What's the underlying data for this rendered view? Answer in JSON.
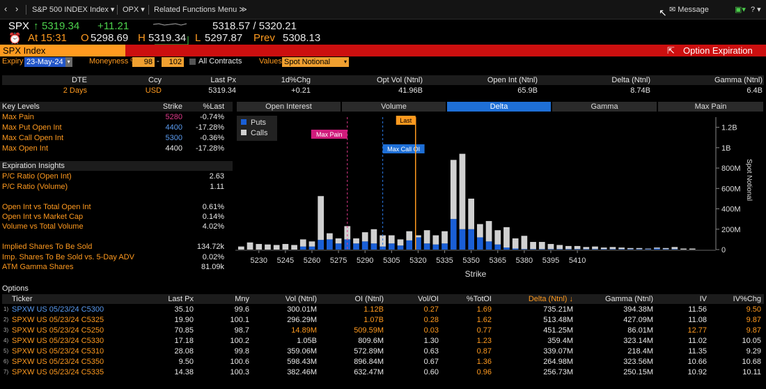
{
  "titlebar": {
    "security": "S&P 500 INDEX Index",
    "func": "OPX",
    "related": "Related Functions Menu",
    "message": "Message",
    "help": "?"
  },
  "quote": {
    "ticker": "SPX",
    "last": "5319.34",
    "change": "+11.21",
    "bidask": "5318.57 / 5320.21",
    "at": "At 15:31",
    "open_lbl": "O",
    "open": "5298.69",
    "high_lbl": "H",
    "high": "5319.34",
    "low_lbl": "L",
    "low": "5297.87",
    "prev_lbl": "Prev",
    "prev": "5308.13"
  },
  "header": {
    "index_label": "SPX Index",
    "title": "Option Expiration"
  },
  "controls": {
    "expiry_lbl": "Expiry",
    "expiry": "23-May-24",
    "moneyness_lbl": "Moneyness %",
    "m_low": "98",
    "m_high": "102",
    "all_contracts": "All Contracts",
    "values_lbl": "Values",
    "values": "Spot Notional"
  },
  "summary": {
    "headers": [
      "DTE",
      "Ccy",
      "Last Px",
      "1d%Chg",
      "Opt Vol (Ntnl)",
      "Open Int (Ntnl)",
      "Delta (Ntnl)",
      "Gamma (Ntnl)"
    ],
    "values": [
      "2 Days",
      "USD",
      "5319.34",
      "+0.21",
      "41.96B",
      "65.9B",
      "8.74B",
      "6.4B"
    ]
  },
  "key_levels": {
    "header": "Key Levels",
    "col_strike": "Strike",
    "col_last": "%Last",
    "rows": [
      {
        "label": "Max Pain",
        "strike": "5280",
        "last": "-0.74%",
        "color": "#e0388a"
      },
      {
        "label": "Max Put Open Int",
        "strike": "4400",
        "last": "-17.28%",
        "color": "#5a9bf0"
      },
      {
        "label": "Max Call Open Int",
        "strike": "5300",
        "last": "-0.36%",
        "color": "#5a9bf0"
      },
      {
        "label": "Max Open Int",
        "strike": "4400",
        "last": "-17.28%",
        "color": "#e8e8e8"
      }
    ]
  },
  "insights": {
    "header": "Expiration Insights",
    "rows": [
      {
        "label": "P/C Ratio (Open Int)",
        "value": "2.63"
      },
      {
        "label": "P/C Ratio (Volume)",
        "value": "1.11"
      },
      {
        "label": "Open Int vs Total Open Int",
        "value": "0.61%"
      },
      {
        "label": "Open Int vs Market Cap",
        "value": "0.14%"
      },
      {
        "label": "Volume vs Total Volume",
        "value": "4.02%"
      },
      {
        "label": "Implied Shares To Be Sold",
        "value": "134.72k"
      },
      {
        "label": "Imp. Shares To Be Sold vs. 5-Day ADV",
        "value": "0.02%"
      },
      {
        "label": "ATM Gamma Shares",
        "value": "81.09k"
      }
    ]
  },
  "chart_tabs": [
    "Open Interest",
    "Volume",
    "Delta",
    "Gamma",
    "Max Pain"
  ],
  "chart_data": {
    "type": "bar",
    "xlabel": "Strike",
    "ylabel": "Spot Notional",
    "x_ticks": [
      "5230",
      "5245",
      "5260",
      "5275",
      "5290",
      "5305",
      "5320",
      "5335",
      "5350",
      "5365",
      "5380",
      "5395",
      "5410"
    ],
    "y_ticks": [
      "0",
      "200M",
      "400M",
      "600M",
      "800M",
      "1B",
      "1.2B"
    ],
    "ylim": [
      0,
      1300
    ],
    "legend": [
      "Puts",
      "Calls"
    ],
    "annotations": {
      "max_pain": "Max Pain",
      "max_call_oi": "Max Call OI",
      "last": "Last"
    },
    "strike_start": 5220,
    "strike_step": 5,
    "series": [
      {
        "name": "Puts",
        "color": "#1a5fd6",
        "values": [
          0,
          0,
          0,
          0,
          0,
          0,
          0,
          30,
          30,
          95,
          100,
          60,
          100,
          60,
          80,
          60,
          30,
          60,
          40,
          90,
          120,
          60,
          50,
          60,
          300,
          200,
          200,
          120,
          80,
          50,
          20,
          10,
          5,
          5,
          5,
          5,
          5,
          5,
          5,
          5,
          5,
          5,
          5,
          5,
          5,
          5,
          5,
          10,
          5,
          5,
          0,
          0,
          0,
          0
        ]
      },
      {
        "name": "Calls",
        "color": "#d0d0d0",
        "values": [
          30,
          70,
          55,
          50,
          45,
          55,
          45,
          70,
          50,
          430,
          60,
          50,
          130,
          50,
          90,
          140,
          110,
          80,
          60,
          90,
          20,
          130,
          90,
          120,
          580,
          740,
          300,
          130,
          200,
          140,
          200,
          100,
          130,
          70,
          70,
          50,
          40,
          30,
          30,
          20,
          25,
          15,
          20,
          15,
          10,
          10,
          5,
          10,
          10,
          20,
          10,
          10,
          0,
          0
        ]
      }
    ]
  },
  "options": {
    "title": "Options",
    "headers": [
      "Ticker",
      "Last Px",
      "Mny",
      "Vol (Ntnl)",
      "OI (Ntnl)",
      "Vol/OI",
      "%TotOI",
      "Delta (Ntnl) ↓",
      "Gamma (Ntnl)",
      "IV",
      "IV%Chg"
    ],
    "rows": [
      {
        "n": "1)",
        "t": "SPXW US 05/23/24 C5300",
        "px": "35.10",
        "mny": "99.6",
        "vol": "300.01M",
        "oi": "1.12B",
        "voi": "0.27",
        "pct": "1.69",
        "delta": "735.21M",
        "gamma": "394.38M",
        "iv": "11.56",
        "ivc": "9.50"
      },
      {
        "n": "2)",
        "t": "SPXW US 05/23/24 C5325",
        "px": "19.90",
        "mny": "100.1",
        "vol": "296.29M",
        "oi": "1.07B",
        "voi": "0.28",
        "pct": "1.62",
        "delta": "513.48M",
        "gamma": "427.09M",
        "iv": "11.08",
        "ivc": "9.87"
      },
      {
        "n": "3)",
        "t": "SPXW US 05/23/24 C5250",
        "px": "70.85",
        "mny": "98.7",
        "vol": "14.89M",
        "oi": "509.59M",
        "voi": "0.03",
        "pct": "0.77",
        "delta": "451.25M",
        "gamma": "86.01M",
        "iv": "12.77",
        "ivc": "9.87"
      },
      {
        "n": "4)",
        "t": "SPXW US 05/23/24 C5330",
        "px": "17.18",
        "mny": "100.2",
        "vol": "1.05B",
        "oi": "809.6M",
        "voi": "1.30",
        "pct": "1.23",
        "delta": "359.4M",
        "gamma": "323.14M",
        "iv": "11.02",
        "ivc": "10.05"
      },
      {
        "n": "5)",
        "t": "SPXW US 05/23/24 C5310",
        "px": "28.08",
        "mny": "99.8",
        "vol": "359.06M",
        "oi": "572.89M",
        "voi": "0.63",
        "pct": "0.87",
        "delta": "339.07M",
        "gamma": "218.4M",
        "iv": "11.35",
        "ivc": "9.29"
      },
      {
        "n": "6)",
        "t": "SPXW US 05/23/24 C5350",
        "px": "9.50",
        "mny": "100.6",
        "vol": "598.43M",
        "oi": "896.84M",
        "voi": "0.67",
        "pct": "1.36",
        "delta": "264.98M",
        "gamma": "323.56M",
        "iv": "10.66",
        "ivc": "10.68"
      },
      {
        "n": "7)",
        "t": "SPXW US 05/23/24 C5335",
        "px": "14.38",
        "mny": "100.3",
        "vol": "382.46M",
        "oi": "632.47M",
        "voi": "0.60",
        "pct": "0.96",
        "delta": "256.73M",
        "gamma": "250.15M",
        "iv": "10.92",
        "ivc": "10.11"
      }
    ]
  }
}
